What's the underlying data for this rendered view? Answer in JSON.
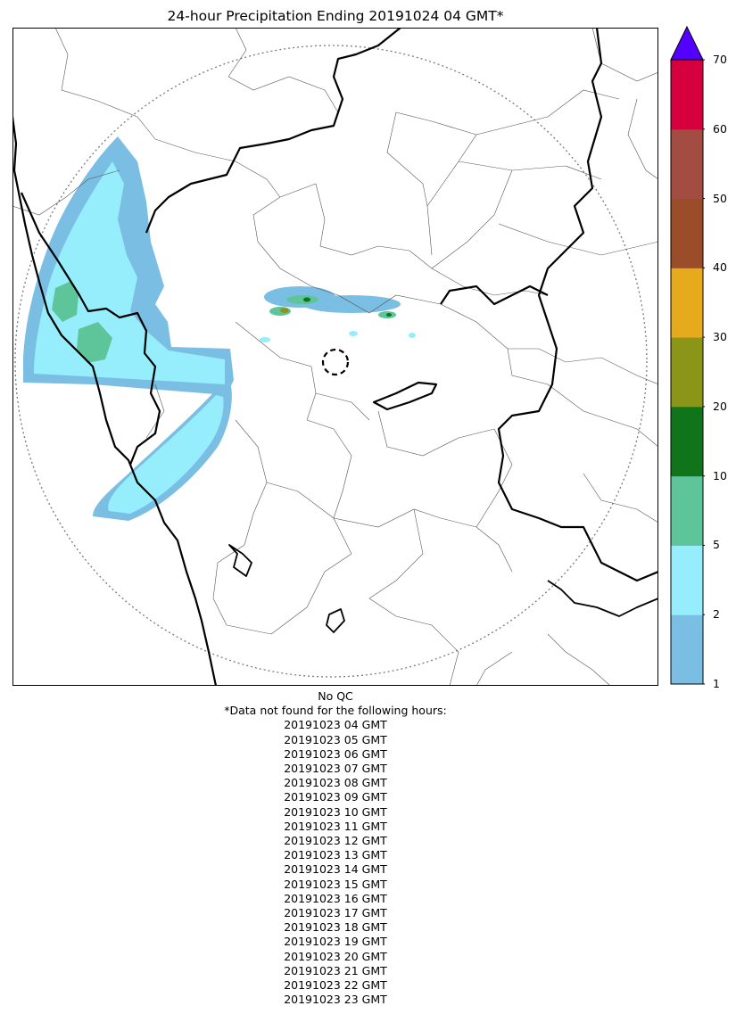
{
  "title": "24-hour Precipitation Ending 20191024 04 GMT*",
  "colorbar": {
    "ticks": [
      "1",
      "2",
      "5",
      "10",
      "20",
      "30",
      "40",
      "50",
      "60",
      "70"
    ],
    "colors": [
      "#7abfe3",
      "#96eefc",
      "#5ec49a",
      "#0f741a",
      "#8b9518",
      "#e6ab1d",
      "#9a4d28",
      "#a34c41",
      "#d6003f"
    ],
    "extend_color": "#5400ff"
  },
  "notes": {
    "qc": "No QC",
    "header": "*Data not found for the following hours:",
    "missing_hours": [
      "20191023 04 GMT",
      "20191023 05 GMT",
      "20191023 06 GMT",
      "20191023 07 GMT",
      "20191023 08 GMT",
      "20191023 09 GMT",
      "20191023 10 GMT",
      "20191023 11 GMT",
      "20191023 12 GMT",
      "20191023 13 GMT",
      "20191023 14 GMT",
      "20191023 15 GMT",
      "20191023 16 GMT",
      "20191023 17 GMT",
      "20191023 18 GMT",
      "20191023 19 GMT",
      "20191023 20 GMT",
      "20191023 21 GMT",
      "20191023 22 GMT",
      "20191023 23 GMT"
    ]
  }
}
